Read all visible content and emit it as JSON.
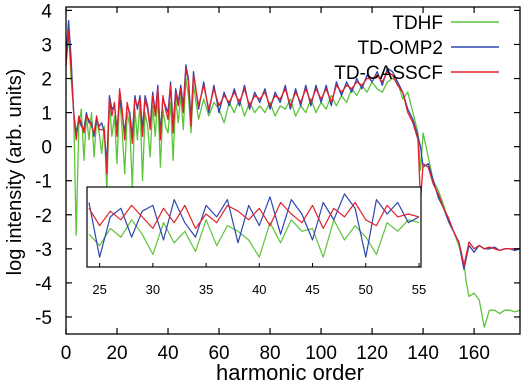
{
  "chart_data": {
    "type": "line",
    "xlabel": "harmonic order",
    "ylabel": "log intensity (arb. units)",
    "xlim": [
      0,
      178
    ],
    "ylim": [
      -5.5,
      4.1
    ],
    "x_ticks": [
      "0",
      "20",
      "40",
      "60",
      "80",
      "100",
      "120",
      "140",
      "160"
    ],
    "y_ticks": [
      "4",
      "3",
      "2",
      "1",
      "0",
      "-1",
      "-2",
      "-3",
      "-4",
      "-5"
    ],
    "legend_position": "top-right",
    "series": [
      {
        "name": "TDHF",
        "color": "#5cc43a",
        "x": [
          0,
          1,
          2,
          3,
          4,
          5,
          6,
          7,
          8,
          9,
          10,
          11,
          12,
          13,
          14,
          15,
          16,
          17,
          18,
          19,
          20,
          21,
          22,
          23,
          24,
          25,
          26,
          27,
          28,
          29,
          30,
          31,
          32,
          33,
          34,
          35,
          36,
          37,
          38,
          39,
          40,
          41,
          42,
          43,
          44,
          45,
          46,
          47,
          48,
          49,
          50,
          52,
          54,
          56,
          58,
          60,
          62,
          64,
          66,
          68,
          70,
          72,
          74,
          76,
          78,
          80,
          82,
          84,
          86,
          88,
          90,
          92,
          94,
          96,
          98,
          100,
          102,
          104,
          106,
          108,
          110,
          112,
          114,
          116,
          118,
          120,
          122,
          124,
          126,
          128,
          130,
          132,
          134,
          136,
          138,
          139,
          140,
          142,
          144,
          146,
          148,
          150,
          152,
          154,
          156,
          157,
          158,
          160,
          162,
          164,
          166,
          168,
          170,
          172,
          174,
          176,
          178
        ],
        "y": [
          2.4,
          3.3,
          2.0,
          1.0,
          -2.6,
          0.6,
          1.1,
          -0.4,
          0.9,
          0.2,
          1.0,
          -0.3,
          0.8,
          0.4,
          -0.2,
          0.6,
          -1.3,
          1.3,
          0.3,
          0.9,
          -0.5,
          1.5,
          0.5,
          -0.8,
          1.0,
          0.6,
          -1.2,
          1.1,
          0.2,
          1.3,
          -1.0,
          1.0,
          0.6,
          -0.3,
          1.2,
          0.3,
          1.5,
          -0.6,
          1.1,
          0.6,
          0.4,
          1.3,
          -0.4,
          1.4,
          0.7,
          1.5,
          0.5,
          2.0,
          1.5,
          0.4,
          1.8,
          0.8,
          1.4,
          0.9,
          1.3,
          1.1,
          0.7,
          1.3,
          1.0,
          1.4,
          0.9,
          1.3,
          1.0,
          1.2,
          1.0,
          1.3,
          0.9,
          1.2,
          1.1,
          1.4,
          0.9,
          1.2,
          1.0,
          1.4,
          1.0,
          1.3,
          1.1,
          1.5,
          1.2,
          1.5,
          1.3,
          1.7,
          1.5,
          1.8,
          1.6,
          1.9,
          1.7,
          1.6,
          1.9,
          2.0,
          1.9,
          1.4,
          1.6,
          1.0,
          0.4,
          -0.7,
          0.4,
          -0.3,
          -1.0,
          -1.3,
          -1.7,
          -2.2,
          -2.5,
          -2.9,
          -3.4,
          -4.0,
          -4.4,
          -4.3,
          -4.5,
          -5.3,
          -4.8,
          -4.8,
          -4.9,
          -4.8,
          -4.8,
          -4.85,
          -4.8
        ]
      },
      {
        "name": "TD-OMP2",
        "color": "#2e46b0",
        "x": [
          0,
          1,
          2,
          3,
          4,
          5,
          6,
          7,
          8,
          9,
          10,
          11,
          12,
          13,
          14,
          15,
          16,
          17,
          18,
          19,
          20,
          21,
          22,
          23,
          24,
          25,
          26,
          27,
          28,
          29,
          30,
          31,
          32,
          33,
          34,
          35,
          36,
          37,
          38,
          39,
          40,
          41,
          42,
          43,
          44,
          45,
          46,
          47,
          48,
          49,
          50,
          52,
          54,
          56,
          58,
          60,
          62,
          64,
          66,
          68,
          70,
          72,
          74,
          76,
          78,
          80,
          82,
          84,
          86,
          88,
          90,
          92,
          94,
          96,
          98,
          100,
          102,
          104,
          106,
          108,
          110,
          112,
          114,
          116,
          118,
          120,
          122,
          124,
          126,
          128,
          130,
          132,
          134,
          136,
          138,
          139,
          140,
          142,
          144,
          146,
          148,
          150,
          152,
          154,
          155,
          156,
          158,
          160,
          162,
          164,
          166,
          168,
          170,
          172,
          174,
          176,
          178
        ],
        "y": [
          2.6,
          3.7,
          2.6,
          1.0,
          0.4,
          0.8,
          0.6,
          0.5,
          1.0,
          0.7,
          0.7,
          0.3,
          0.8,
          0.6,
          0.7,
          0.4,
          -0.5,
          1.5,
          1.1,
          1.2,
          0.5,
          1.4,
          1.0,
          0.4,
          1.2,
          1.0,
          0.3,
          1.5,
          1.1,
          1.5,
          0.5,
          1.5,
          1.2,
          0.6,
          1.6,
          1.0,
          1.8,
          0.4,
          1.4,
          1.2,
          1.0,
          1.9,
          0.6,
          1.7,
          1.3,
          1.8,
          1.2,
          2.4,
          2.0,
          0.8,
          2.2,
          1.1,
          1.9,
          1.0,
          1.8,
          1.0,
          1.6,
          1.2,
          1.7,
          1.2,
          1.8,
          1.1,
          1.6,
          1.3,
          1.7,
          1.1,
          1.6,
          1.3,
          1.8,
          1.1,
          1.7,
          1.2,
          1.8,
          1.2,
          1.8,
          1.3,
          1.8,
          1.2,
          1.9,
          1.5,
          1.9,
          1.6,
          2.0,
          1.7,
          2.1,
          1.9,
          2.2,
          1.8,
          2.3,
          2.2,
          1.9,
          1.6,
          1.1,
          0.8,
          0.3,
          0.0,
          -0.6,
          -0.5,
          -1.0,
          -1.5,
          -1.8,
          -2.2,
          -2.5,
          -2.8,
          -3.2,
          -3.6,
          -2.9,
          -3.1,
          -2.9,
          -3.0,
          -3.0,
          -2.95,
          -3.05,
          -3.0,
          -3.0,
          -3.05,
          -3.0
        ]
      },
      {
        "name": "TD-CASSCF",
        "color": "#e0202a",
        "x": [
          0,
          1,
          2,
          3,
          4,
          5,
          6,
          7,
          8,
          9,
          10,
          11,
          12,
          13,
          14,
          15,
          16,
          17,
          18,
          19,
          20,
          21,
          22,
          23,
          24,
          25,
          26,
          27,
          28,
          29,
          30,
          31,
          32,
          33,
          34,
          35,
          36,
          37,
          38,
          39,
          40,
          41,
          42,
          43,
          44,
          45,
          46,
          47,
          48,
          49,
          50,
          52,
          54,
          56,
          58,
          60,
          62,
          64,
          66,
          68,
          70,
          72,
          74,
          76,
          78,
          80,
          82,
          84,
          86,
          88,
          90,
          92,
          94,
          96,
          98,
          100,
          102,
          104,
          106,
          108,
          110,
          112,
          114,
          116,
          118,
          120,
          122,
          124,
          126,
          128,
          130,
          132,
          134,
          136,
          138,
          139,
          140,
          142,
          144,
          146,
          148,
          150,
          152,
          154,
          155,
          156,
          158,
          160,
          162,
          164,
          166,
          168,
          170,
          172,
          174,
          176,
          178
        ],
        "y": [
          2.4,
          3.4,
          2.3,
          1.0,
          0.2,
          0.9,
          0.7,
          0.4,
          0.9,
          0.8,
          0.6,
          0.4,
          0.9,
          0.5,
          0.5,
          0.5,
          -0.8,
          1.4,
          0.9,
          1.3,
          0.3,
          1.7,
          1.1,
          0.2,
          1.3,
          0.9,
          0.1,
          1.4,
          1.2,
          1.4,
          0.3,
          1.4,
          1.1,
          0.5,
          1.5,
          0.9,
          1.7,
          0.2,
          1.5,
          1.1,
          0.8,
          1.8,
          0.4,
          1.6,
          1.2,
          1.7,
          1.0,
          2.3,
          1.9,
          0.6,
          2.1,
          1.2,
          1.8,
          1.1,
          1.7,
          1.2,
          1.5,
          1.3,
          1.6,
          1.3,
          1.7,
          1.2,
          1.5,
          1.4,
          1.6,
          1.2,
          1.5,
          1.4,
          1.7,
          1.2,
          1.6,
          1.3,
          1.7,
          1.3,
          1.7,
          1.4,
          1.7,
          1.3,
          1.8,
          1.6,
          1.8,
          1.7,
          1.9,
          1.8,
          2.0,
          2.0,
          2.1,
          1.9,
          2.2,
          2.1,
          1.8,
          1.6,
          1.0,
          0.7,
          0.2,
          -1.6,
          -0.5,
          -0.6,
          -1.1,
          -1.4,
          -1.8,
          -2.1,
          -2.5,
          -2.8,
          -3.1,
          -3.5,
          -2.8,
          -3.0,
          -2.9,
          -3.0,
          -2.95,
          -3.0,
          -3.05,
          -3.0,
          -3.0,
          -3.0,
          -3.0
        ]
      }
    ],
    "inset": {
      "x_ticks": [
        "25",
        "30",
        "35",
        "40",
        "45",
        "50",
        "55"
      ],
      "xlim": [
        24,
        55
      ],
      "ylim": [
        0,
        2.5
      ],
      "series": [
        {
          "name": "TDHF",
          "x": [
            24,
            25,
            26,
            27,
            28,
            29,
            30,
            31,
            32,
            33,
            34,
            35,
            36,
            37,
            38,
            39,
            40,
            41,
            42,
            43,
            44,
            45,
            46,
            47,
            48,
            49,
            50,
            51,
            52,
            53,
            54,
            55
          ],
          "y": [
            1.0,
            0.6,
            1.2,
            0.9,
            1.5,
            1.0,
            0.3,
            1.4,
            0.7,
            1.1,
            0.4,
            1.5,
            0.6,
            1.3,
            1.1,
            0.8,
            0.2,
            1.4,
            0.7,
            1.5,
            1.1,
            1.2,
            0.2,
            1.5,
            0.8,
            1.3,
            0.9,
            0.3,
            1.4,
            1.1,
            1.5,
            1.4
          ]
        },
        {
          "name": "TD-OMP2",
          "x": [
            24,
            25,
            26,
            27,
            28,
            29,
            30,
            31,
            32,
            33,
            34,
            35,
            36,
            37,
            38,
            39,
            40,
            41,
            42,
            43,
            44,
            45,
            46,
            47,
            48,
            49,
            50,
            51,
            52,
            53,
            54,
            55
          ],
          "y": [
            2.1,
            0.2,
            1.6,
            1.9,
            0.9,
            1.8,
            2.0,
            0.8,
            2.2,
            1.4,
            0.9,
            2.0,
            1.6,
            2.2,
            0.7,
            2.0,
            1.3,
            2.3,
            1.0,
            2.2,
            1.7,
            0.8,
            2.1,
            1.5,
            2.4,
            1.9,
            0.2,
            2.2,
            1.7,
            2.1,
            1.4,
            1.6
          ]
        },
        {
          "name": "TD-CASSCF",
          "x": [
            24,
            25,
            26,
            27,
            28,
            29,
            30,
            31,
            32,
            33,
            34,
            35,
            36,
            37,
            38,
            39,
            40,
            41,
            42,
            43,
            44,
            45,
            46,
            47,
            48,
            49,
            50,
            51,
            52,
            53,
            54,
            55
          ],
          "y": [
            1.9,
            1.3,
            1.8,
            1.5,
            2.0,
            1.6,
            1.2,
            1.9,
            1.4,
            2.0,
            1.2,
            1.7,
            1.4,
            2.0,
            1.8,
            1.5,
            1.9,
            1.3,
            2.1,
            1.7,
            1.4,
            2.0,
            1.2,
            1.9,
            1.6,
            2.1,
            1.5,
            1.3,
            2.0,
            1.6,
            1.7,
            1.6
          ]
        }
      ]
    }
  }
}
